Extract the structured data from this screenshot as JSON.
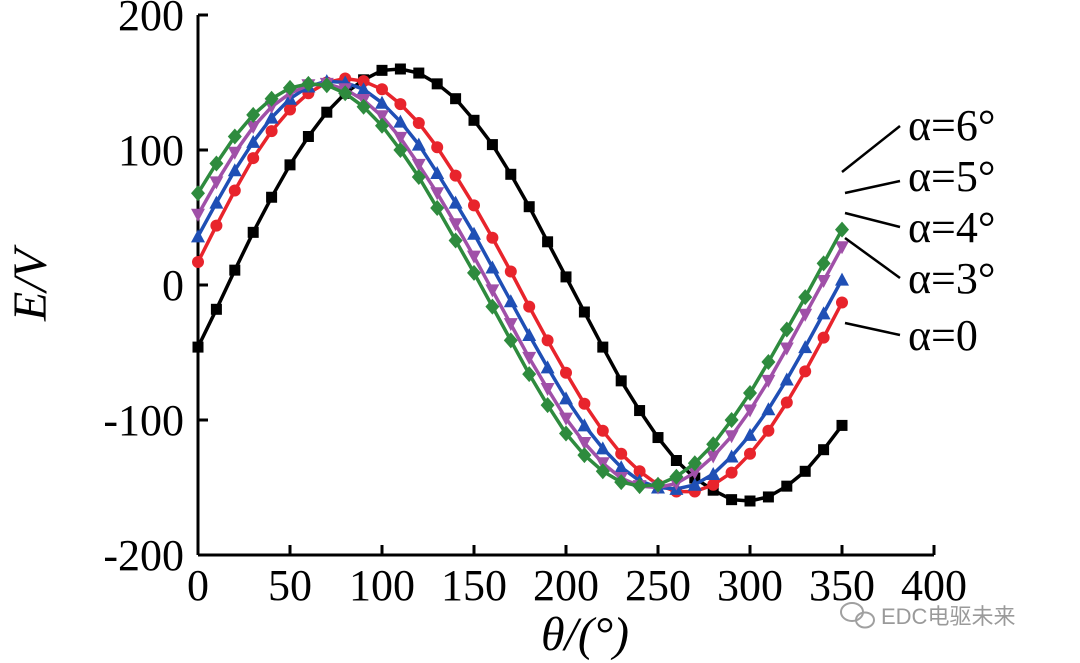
{
  "chart_data": {
    "type": "line",
    "title": "",
    "xlabel": "θ/(°)",
    "ylabel": "E/V",
    "xlim": [
      0,
      400
    ],
    "ylim": [
      -200,
      200
    ],
    "xticks": [
      "0",
      "50",
      "100",
      "150",
      "200",
      "250",
      "300",
      "350",
      "400"
    ],
    "yticks": [
      "200",
      "100",
      "0",
      "-100",
      "-200"
    ],
    "grid": false,
    "legend_position": "right",
    "series": [
      {
        "name": "α=0",
        "color": "#000000",
        "marker": "square",
        "x": [
          0,
          10,
          20,
          30,
          40,
          50,
          60,
          70,
          80,
          90,
          100,
          110,
          120,
          130,
          140,
          150,
          160,
          170,
          180,
          190,
          200,
          210,
          220,
          230,
          240,
          250,
          260,
          270,
          280,
          290,
          300,
          310,
          320,
          330,
          340,
          350
        ],
        "y": [
          -46,
          -18,
          11,
          39,
          65,
          89,
          110,
          128,
          142,
          152,
          159,
          160,
          157,
          149,
          138,
          122,
          104,
          82,
          58,
          32,
          6,
          -20,
          -46,
          -71,
          -93,
          -113,
          -130,
          -143,
          -152,
          -159,
          -160,
          -157,
          -149,
          -138,
          -122,
          -104
        ]
      },
      {
        "name": "α=3°",
        "color": "#e8242c",
        "marker": "circle",
        "x": [
          0,
          10,
          20,
          30,
          40,
          50,
          60,
          70,
          80,
          90,
          100,
          110,
          120,
          130,
          140,
          150,
          160,
          170,
          180,
          190,
          200,
          210,
          220,
          230,
          240,
          250,
          260,
          270,
          280,
          290,
          300,
          310,
          320,
          330,
          340,
          350
        ],
        "y": [
          17,
          44,
          70,
          94,
          114,
          130,
          142,
          150,
          153,
          151,
          145,
          134,
          120,
          102,
          81,
          59,
          35,
          10,
          -16,
          -41,
          -65,
          -88,
          -108,
          -125,
          -138,
          -148,
          -153,
          -153,
          -148,
          -139,
          -125,
          -108,
          -87,
          -64,
          -39,
          -13
        ]
      },
      {
        "name": "α=4°",
        "color": "#1f4fb5",
        "marker": "triangle-up",
        "x": [
          0,
          10,
          20,
          30,
          40,
          50,
          60,
          70,
          80,
          90,
          100,
          110,
          120,
          130,
          140,
          150,
          160,
          170,
          180,
          190,
          200,
          210,
          220,
          230,
          240,
          250,
          260,
          270,
          280,
          290,
          300,
          310,
          320,
          330,
          340,
          350
        ],
        "y": [
          36,
          61,
          85,
          106,
          124,
          138,
          147,
          151,
          150,
          145,
          135,
          121,
          104,
          83,
          61,
          38,
          13,
          -12,
          -37,
          -61,
          -84,
          -104,
          -121,
          -135,
          -145,
          -150,
          -151,
          -148,
          -140,
          -127,
          -111,
          -92,
          -70,
          -46,
          -21,
          4
        ]
      },
      {
        "name": "α=5°",
        "color": "#a050a8",
        "marker": "triangle-down",
        "x": [
          0,
          10,
          20,
          30,
          40,
          50,
          60,
          70,
          80,
          90,
          100,
          110,
          120,
          130,
          140,
          150,
          160,
          170,
          180,
          190,
          200,
          210,
          220,
          230,
          240,
          250,
          260,
          270,
          280,
          290,
          300,
          310,
          320,
          330,
          340,
          350
        ],
        "y": [
          52,
          76,
          98,
          117,
          132,
          142,
          148,
          149,
          145,
          137,
          125,
          109,
          89,
          68,
          45,
          21,
          -4,
          -29,
          -54,
          -77,
          -99,
          -117,
          -132,
          -143,
          -149,
          -150,
          -147,
          -139,
          -127,
          -112,
          -93,
          -71,
          -47,
          -22,
          3,
          28
        ]
      },
      {
        "name": "α=6°",
        "color": "#2e8b3e",
        "marker": "diamond",
        "x": [
          0,
          10,
          20,
          30,
          40,
          50,
          60,
          70,
          80,
          90,
          100,
          110,
          120,
          130,
          140,
          150,
          160,
          170,
          180,
          190,
          200,
          210,
          220,
          230,
          240,
          250,
          260,
          270,
          280,
          290,
          300,
          310,
          320,
          330,
          340,
          350
        ],
        "y": [
          68,
          90,
          110,
          126,
          138,
          146,
          149,
          148,
          142,
          132,
          118,
          100,
          80,
          57,
          33,
          9,
          -16,
          -41,
          -66,
          -89,
          -110,
          -126,
          -138,
          -146,
          -149,
          -148,
          -142,
          -132,
          -118,
          -100,
          -80,
          -57,
          -33,
          -9,
          16,
          41
        ]
      }
    ]
  },
  "legend": {
    "items": [
      "α=6°",
      "α=5°",
      "α=4°",
      "α=3°",
      "α=0"
    ]
  },
  "watermark": {
    "icon": "wechat-icon",
    "text": "EDC电驱未来"
  }
}
